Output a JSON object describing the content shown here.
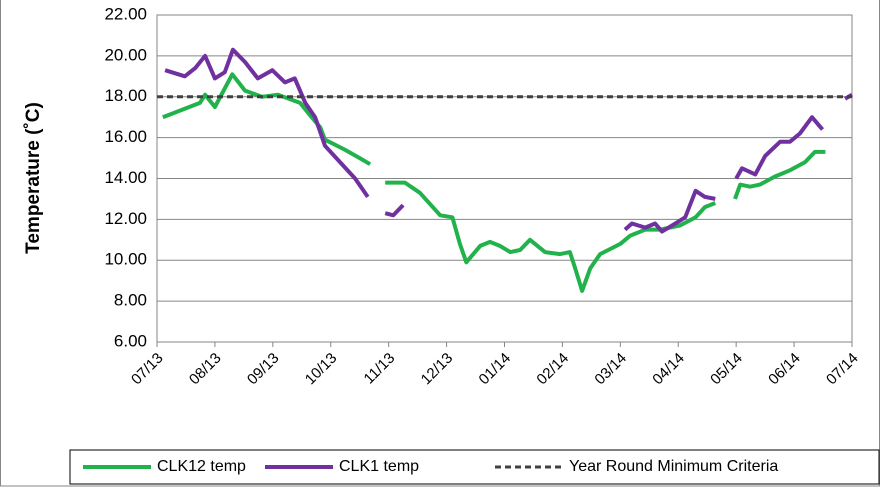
{
  "chart_data": {
    "type": "line",
    "ylabel": "Temperature (˚C)",
    "ylim": [
      6,
      22
    ],
    "yticks": [
      {
        "value": 6,
        "label": "6.00"
      },
      {
        "value": 8,
        "label": "8.00"
      },
      {
        "value": 10,
        "label": "10.00"
      },
      {
        "value": 12,
        "label": "12.00"
      },
      {
        "value": 14,
        "label": "14.00"
      },
      {
        "value": 16,
        "label": "16.00"
      },
      {
        "value": 18,
        "label": "18.00"
      },
      {
        "value": 20,
        "label": "20.00"
      },
      {
        "value": 22,
        "label": "22.00"
      }
    ],
    "xlim": [
      0,
      12
    ],
    "xticks": [
      {
        "value": 0,
        "label": "07/13"
      },
      {
        "value": 1,
        "label": "08/13"
      },
      {
        "value": 2,
        "label": "09/13"
      },
      {
        "value": 3,
        "label": "10/13"
      },
      {
        "value": 4,
        "label": "11/13"
      },
      {
        "value": 5,
        "label": "12/13"
      },
      {
        "value": 6,
        "label": "01/14"
      },
      {
        "value": 7,
        "label": "02/14"
      },
      {
        "value": 8,
        "label": "03/14"
      },
      {
        "value": 9,
        "label": "04/14"
      },
      {
        "value": 10,
        "label": "05/14"
      },
      {
        "value": 11,
        "label": "06/14"
      },
      {
        "value": 12,
        "label": "07/14"
      }
    ],
    "grid": true,
    "legend": "bottom",
    "series": [
      {
        "name": "CLK12 temp",
        "color": "#22b24c",
        "style": "solid",
        "x": [
          0.1,
          0.74,
          0.83,
          1.0,
          1.3,
          1.52,
          1.81,
          2.09,
          2.47,
          2.64,
          2.82,
          2.9,
          3.25,
          3.5,
          3.68,
          3.8,
          3.94,
          4.28,
          4.54,
          4.89,
          5.1,
          5.23,
          5.34,
          5.58,
          5.75,
          5.92,
          6.1,
          6.27,
          6.44,
          6.7,
          6.96,
          7.13,
          7.22,
          7.34,
          7.48,
          7.65,
          8.0,
          8.17,
          8.43,
          8.69,
          9.03,
          9.3,
          9.46,
          9.64,
          9.8,
          9.98,
          10.07,
          10.24,
          10.41,
          10.67,
          10.93,
          11.19,
          11.36,
          11.54
        ],
        "values": [
          17.0,
          17.7,
          18.1,
          17.5,
          19.1,
          18.3,
          18.0,
          18.1,
          17.7,
          17.1,
          16.5,
          15.9,
          15.4,
          15.0,
          14.7,
          null,
          13.8,
          13.8,
          13.3,
          12.2,
          12.1,
          10.8,
          9.9,
          10.7,
          10.9,
          10.7,
          10.4,
          10.5,
          11.0,
          10.4,
          10.3,
          10.4,
          9.6,
          8.5,
          9.6,
          10.3,
          10.8,
          11.2,
          11.5,
          11.5,
          11.7,
          12.1,
          12.6,
          12.8,
          null,
          13.0,
          13.7,
          13.6,
          13.7,
          14.1,
          14.4,
          14.8,
          15.3,
          15.3
        ]
      },
      {
        "name": "CLK1 temp",
        "color": "#7030a0",
        "style": "solid",
        "x": [
          0.14,
          0.48,
          0.66,
          0.83,
          1.0,
          1.17,
          1.31,
          1.52,
          1.74,
          1.99,
          2.21,
          2.38,
          2.56,
          2.73,
          2.9,
          3.16,
          3.42,
          3.64,
          3.8,
          3.94,
          4.08,
          4.25,
          6.0,
          8.08,
          8.2,
          8.43,
          8.6,
          8.72,
          8.95,
          9.12,
          9.3,
          9.46,
          9.64,
          9.8,
          10.0,
          10.1,
          10.33,
          10.5,
          10.76,
          10.93,
          11.1,
          11.31,
          11.49,
          11.7,
          11.88,
          12.0
        ],
        "values": [
          19.3,
          19.0,
          19.4,
          20.0,
          18.9,
          19.2,
          20.3,
          19.7,
          18.9,
          19.3,
          18.7,
          18.9,
          17.7,
          17.0,
          15.6,
          14.8,
          14.0,
          13.1,
          null,
          12.3,
          12.2,
          12.7,
          null,
          11.5,
          11.8,
          11.6,
          11.8,
          11.4,
          11.8,
          12.1,
          13.4,
          13.1,
          13.0,
          null,
          14.0,
          14.5,
          14.2,
          15.1,
          15.8,
          15.8,
          16.2,
          17.0,
          16.4,
          null,
          17.9,
          18.1
        ]
      },
      {
        "name": "Year Round Minimum Criteria",
        "color": "#404040",
        "style": "dashed",
        "x": [
          0,
          12
        ],
        "values": [
          18,
          18
        ]
      }
    ]
  }
}
